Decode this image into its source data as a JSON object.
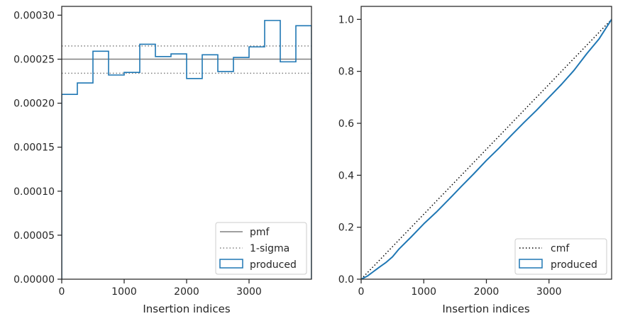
{
  "chart_data": [
    {
      "type": "line",
      "xlabel": "Insertion indices",
      "ylabel": "",
      "xlim": [
        0,
        4000
      ],
      "ylim": [
        0,
        0.00031
      ],
      "xticks": [
        0,
        1000,
        2000,
        3000
      ],
      "yticks": [
        0,
        5e-05,
        0.0001,
        0.00015,
        0.0002,
        0.00025,
        0.0003
      ],
      "ytick_labels": [
        "0.00000",
        "0.00005",
        "0.00010",
        "0.00015",
        "0.00020",
        "0.00025",
        "0.00030"
      ],
      "grid": false,
      "legend_position": "lower-right",
      "reference_lines": {
        "pmf": 0.00025,
        "sigma_upper": 0.000265,
        "sigma_lower": 0.000234
      },
      "series": [
        {
          "name": "pmf",
          "style": "solid",
          "color": "#808080"
        },
        {
          "name": "1-sigma",
          "style": "dotted",
          "color": "#808080"
        },
        {
          "name": "produced",
          "style": "step",
          "color": "#1f77b4",
          "bin_edges": [
            0,
            250,
            500,
            750,
            1000,
            1250,
            1500,
            1750,
            2000,
            2250,
            2500,
            2750,
            3000,
            3250,
            3500,
            3750,
            4000
          ],
          "values": [
            0.00021,
            0.000223,
            0.000259,
            0.000232,
            0.000235,
            0.000267,
            0.000253,
            0.000256,
            0.000228,
            0.000255,
            0.000236,
            0.000252,
            0.000264,
            0.000294,
            0.000247,
            0.000288
          ]
        }
      ]
    },
    {
      "type": "line",
      "xlabel": "Insertion indices",
      "ylabel": "",
      "xlim": [
        0,
        4000
      ],
      "ylim": [
        0,
        1.05
      ],
      "xticks": [
        0,
        1000,
        2000,
        3000
      ],
      "yticks": [
        0,
        0.2,
        0.4,
        0.6,
        0.8,
        1.0
      ],
      "ytick_labels": [
        "0.0",
        "0.2",
        "0.4",
        "0.6",
        "0.8",
        "1.0"
      ],
      "grid": false,
      "legend_position": "lower-right",
      "series": [
        {
          "name": "cmf",
          "style": "dotted",
          "color": "#000000",
          "x": [
            0,
            4000
          ],
          "y": [
            0,
            1.0
          ]
        },
        {
          "name": "produced",
          "style": "step",
          "color": "#1f77b4",
          "x": [
            0,
            100,
            200,
            300,
            400,
            500,
            600,
            800,
            1000,
            1200,
            1400,
            1600,
            1800,
            2000,
            2200,
            2400,
            2600,
            2800,
            3000,
            3200,
            3400,
            3600,
            3800,
            4000
          ],
          "y": [
            0,
            0.012,
            0.03,
            0.048,
            0.065,
            0.086,
            0.115,
            0.163,
            0.213,
            0.258,
            0.307,
            0.357,
            0.406,
            0.457,
            0.504,
            0.554,
            0.603,
            0.65,
            0.7,
            0.75,
            0.804,
            0.867,
            0.925,
            1.0
          ]
        }
      ]
    }
  ]
}
